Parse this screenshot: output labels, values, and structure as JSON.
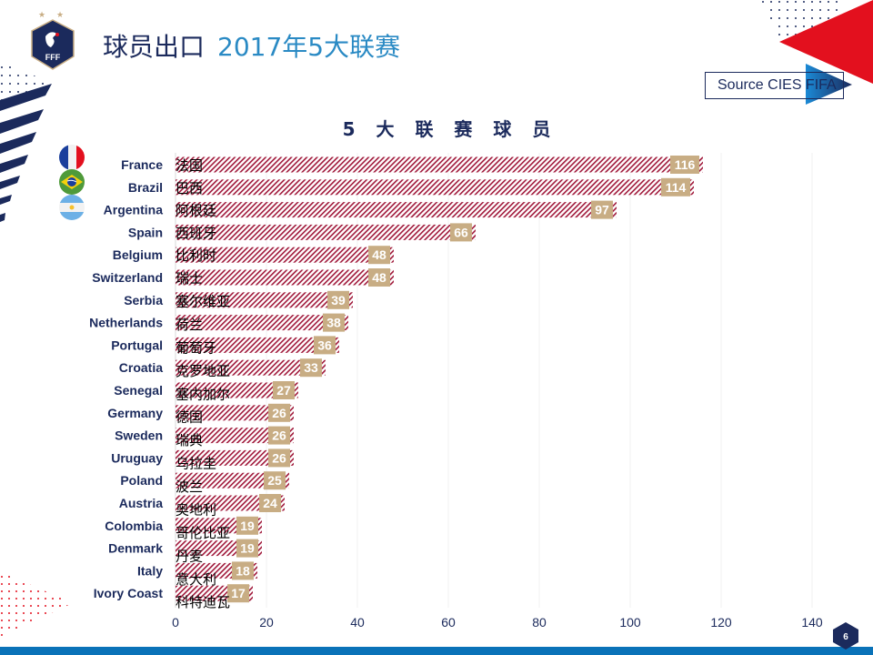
{
  "header": {
    "title_main": "球员出口",
    "title_sub": "2017年5大联赛",
    "logo_text": "FFF",
    "source_label": "Source CIES FIFA"
  },
  "footer": {
    "page_number": "6"
  },
  "colors": {
    "navy": "#1b2a5c",
    "blue": "#2a8ac4",
    "bar_hatch": "#a0183a",
    "label_bg": "#c8ad84",
    "bottom_bar": "#0a72b8",
    "red": "#e3101e"
  },
  "flags": [
    {
      "country": "France",
      "icon": "france-flag-icon"
    },
    {
      "country": "Brazil",
      "icon": "brazil-flag-icon"
    },
    {
      "country": "Argentina",
      "icon": "argentina-flag-icon"
    }
  ],
  "chart_data": {
    "type": "bar",
    "orientation": "horizontal",
    "title": "5 大 联 赛 球 员",
    "categories": [
      "France",
      "Brazil",
      "Argentina",
      "Spain",
      "Belgium",
      "Switzerland",
      "Serbia",
      "Netherlands",
      "Portugal",
      "Croatia",
      "Senegal",
      "Germany",
      "Sweden",
      "Uruguay",
      "Poland",
      "Austria",
      "Colombia",
      "Denmark",
      "Italy",
      "Ivory Coast"
    ],
    "categories_cn": [
      "法国",
      "巴西",
      "阿根廷",
      "西班牙",
      "比利时",
      "瑞士",
      "塞尔维亚",
      "荷兰",
      "葡萄牙",
      "克罗地亚",
      "塞内加尔",
      "德国",
      "瑞典",
      "乌拉圭",
      "波兰",
      "奥地利",
      "哥伦比亚",
      "丹麦",
      "意大利",
      "科特迪瓦"
    ],
    "values": [
      116,
      114,
      97,
      66,
      48,
      48,
      39,
      38,
      36,
      33,
      27,
      26,
      26,
      26,
      25,
      24,
      19,
      19,
      18,
      17
    ],
    "xlim": [
      0,
      140
    ],
    "xticks": [
      "0",
      "20",
      "40",
      "60",
      "80",
      "100",
      "120",
      "140"
    ],
    "xtick_values": [
      0,
      20,
      40,
      60,
      80,
      100,
      120,
      140
    ],
    "grid": true,
    "xlabel": "",
    "ylabel": ""
  }
}
